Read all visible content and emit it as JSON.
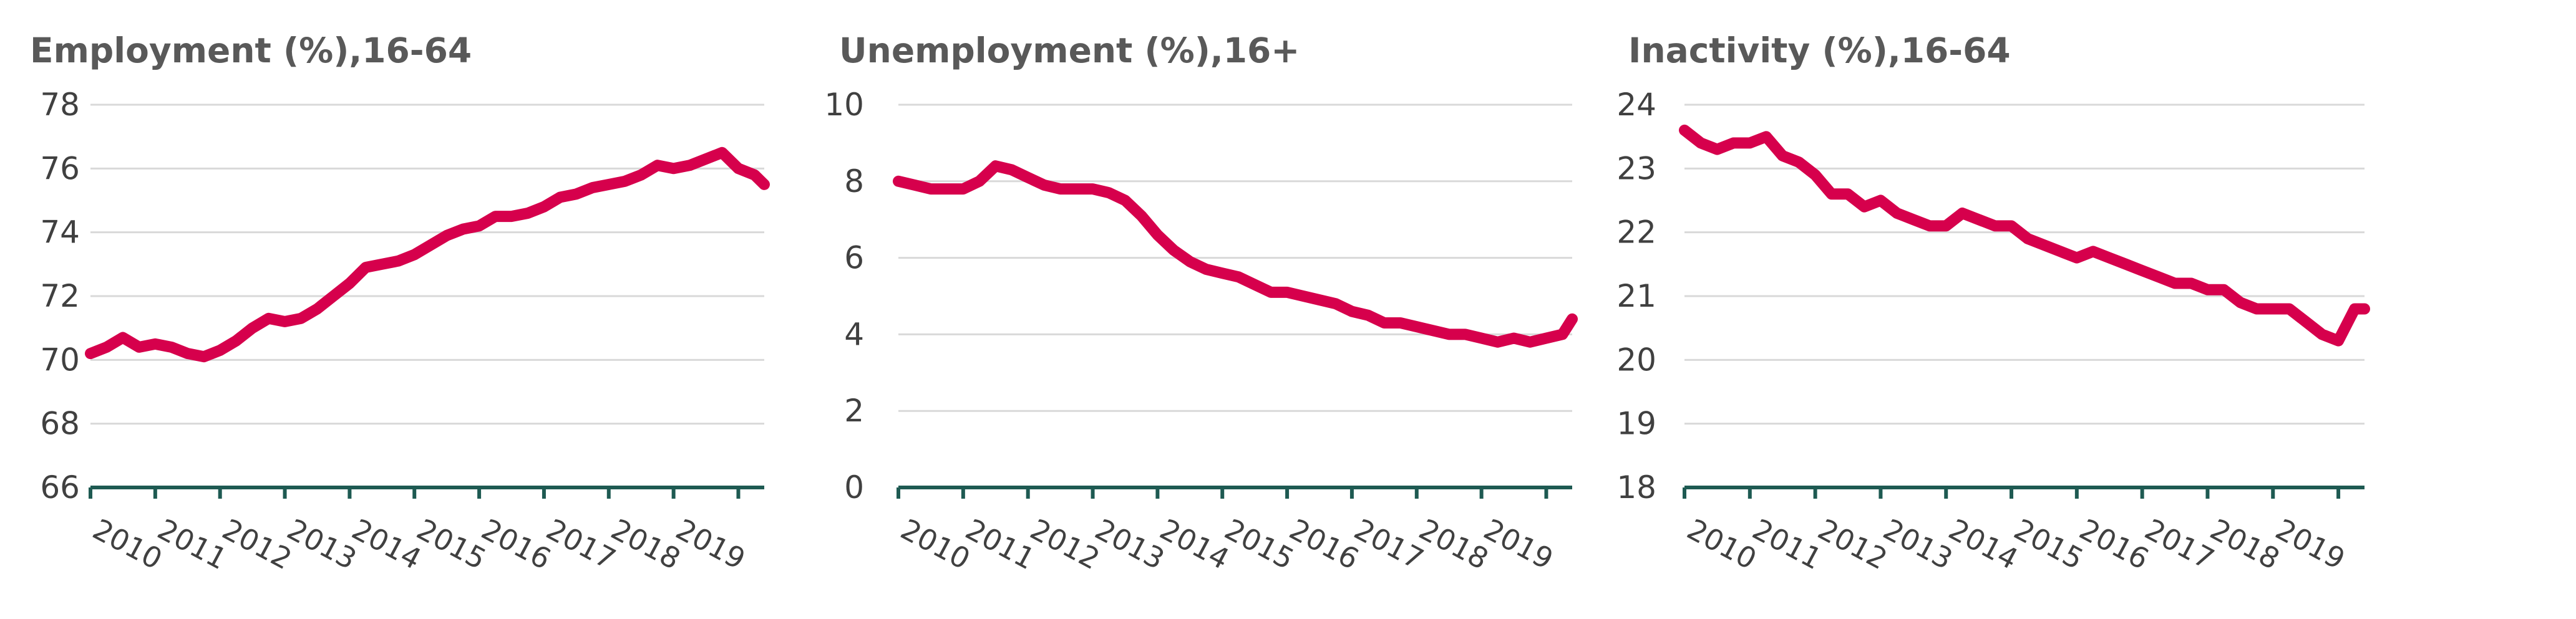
{
  "colors": {
    "series": "#d6004c",
    "axis": "#1e5a52",
    "grid": "#d9d9d9",
    "text": "#404040",
    "title": "#595959"
  },
  "chart_data": [
    {
      "type": "line",
      "title": "Employment (%),16-64",
      "ylim": [
        66,
        78
      ],
      "yticks": [
        66,
        68,
        70,
        72,
        74,
        76,
        78
      ],
      "xlim": [
        2010,
        2020.4
      ],
      "xtick_labels": [
        "2010",
        "2011",
        "2012",
        "2013",
        "2014",
        "2015",
        "2016",
        "2017",
        "2018",
        "2019"
      ],
      "grid": true,
      "series": [
        {
          "x": [
            2010.0,
            2010.25,
            2010.5,
            2010.75,
            2011.0,
            2011.25,
            2011.5,
            2011.75,
            2012.0,
            2012.25,
            2012.5,
            2012.75,
            2013.0,
            2013.25,
            2013.5,
            2013.75,
            2014.0,
            2014.25,
            2014.5,
            2014.75,
            2015.0,
            2015.25,
            2015.5,
            2015.75,
            2016.0,
            2016.25,
            2016.5,
            2016.75,
            2017.0,
            2017.25,
            2017.5,
            2017.75,
            2018.0,
            2018.25,
            2018.5,
            2018.75,
            2019.0,
            2019.25,
            2019.5,
            2019.75,
            2020.0,
            2020.25,
            2020.4
          ],
          "y": [
            70.2,
            70.4,
            70.7,
            70.4,
            70.5,
            70.4,
            70.2,
            70.1,
            70.3,
            70.6,
            71.0,
            71.3,
            71.2,
            71.3,
            71.6,
            72.0,
            72.4,
            72.9,
            73.0,
            73.1,
            73.3,
            73.6,
            73.9,
            74.1,
            74.2,
            74.5,
            74.5,
            74.6,
            74.8,
            75.1,
            75.2,
            75.4,
            75.5,
            75.6,
            75.8,
            76.1,
            76.0,
            76.1,
            76.3,
            76.5,
            76.0,
            75.8,
            75.5
          ]
        }
      ]
    },
    {
      "type": "line",
      "title": "Unemployment (%),16+",
      "ylim": [
        0,
        10
      ],
      "yticks": [
        0,
        2,
        4,
        6,
        8,
        10
      ],
      "xlim": [
        2010,
        2020.4
      ],
      "xtick_labels": [
        "2010",
        "2011",
        "2012",
        "2013",
        "2014",
        "2015",
        "2016",
        "2017",
        "2018",
        "2019"
      ],
      "grid": true,
      "series": [
        {
          "x": [
            2010.0,
            2010.25,
            2010.5,
            2010.75,
            2011.0,
            2011.25,
            2011.5,
            2011.75,
            2012.0,
            2012.25,
            2012.5,
            2012.75,
            2013.0,
            2013.25,
            2013.5,
            2013.75,
            2014.0,
            2014.25,
            2014.5,
            2014.75,
            2015.0,
            2015.25,
            2015.5,
            2015.75,
            2016.0,
            2016.25,
            2016.5,
            2016.75,
            2017.0,
            2017.25,
            2017.5,
            2017.75,
            2018.0,
            2018.25,
            2018.5,
            2018.75,
            2019.0,
            2019.25,
            2019.5,
            2019.75,
            2020.0,
            2020.25,
            2020.4
          ],
          "y": [
            8.0,
            7.9,
            7.8,
            7.8,
            7.8,
            8.0,
            8.4,
            8.3,
            8.1,
            7.9,
            7.8,
            7.8,
            7.8,
            7.7,
            7.5,
            7.1,
            6.6,
            6.2,
            5.9,
            5.7,
            5.6,
            5.5,
            5.3,
            5.1,
            5.1,
            5.0,
            4.9,
            4.8,
            4.6,
            4.5,
            4.3,
            4.3,
            4.2,
            4.1,
            4.0,
            4.0,
            3.9,
            3.8,
            3.9,
            3.8,
            3.9,
            4.0,
            4.4
          ]
        }
      ]
    },
    {
      "type": "line",
      "title": "Inactivity (%),16-64",
      "ylim": [
        18,
        24
      ],
      "yticks": [
        18,
        19,
        20,
        21,
        22,
        23,
        24
      ],
      "xlim": [
        2010,
        2020.4
      ],
      "xtick_labels": [
        "2010",
        "2011",
        "2012",
        "2013",
        "2014",
        "2015",
        "2016",
        "2017",
        "2018",
        "2019"
      ],
      "grid": true,
      "series": [
        {
          "x": [
            2010.0,
            2010.25,
            2010.5,
            2010.75,
            2011.0,
            2011.25,
            2011.5,
            2011.75,
            2012.0,
            2012.25,
            2012.5,
            2012.75,
            2013.0,
            2013.25,
            2013.5,
            2013.75,
            2014.0,
            2014.25,
            2014.5,
            2014.75,
            2015.0,
            2015.25,
            2015.5,
            2015.75,
            2016.0,
            2016.25,
            2016.5,
            2016.75,
            2017.0,
            2017.25,
            2017.5,
            2017.75,
            2018.0,
            2018.25,
            2018.5,
            2018.75,
            2019.0,
            2019.25,
            2019.5,
            2019.75,
            2020.0,
            2020.25,
            2020.4
          ],
          "y": [
            23.6,
            23.4,
            23.3,
            23.4,
            23.4,
            23.5,
            23.2,
            23.1,
            22.9,
            22.6,
            22.6,
            22.4,
            22.5,
            22.3,
            22.2,
            22.1,
            22.1,
            22.3,
            22.2,
            22.1,
            22.1,
            21.9,
            21.8,
            21.7,
            21.6,
            21.7,
            21.6,
            21.5,
            21.4,
            21.3,
            21.2,
            21.2,
            21.1,
            21.1,
            20.9,
            20.8,
            20.8,
            20.8,
            20.6,
            20.4,
            20.3,
            20.8,
            20.8
          ]
        }
      ]
    }
  ]
}
